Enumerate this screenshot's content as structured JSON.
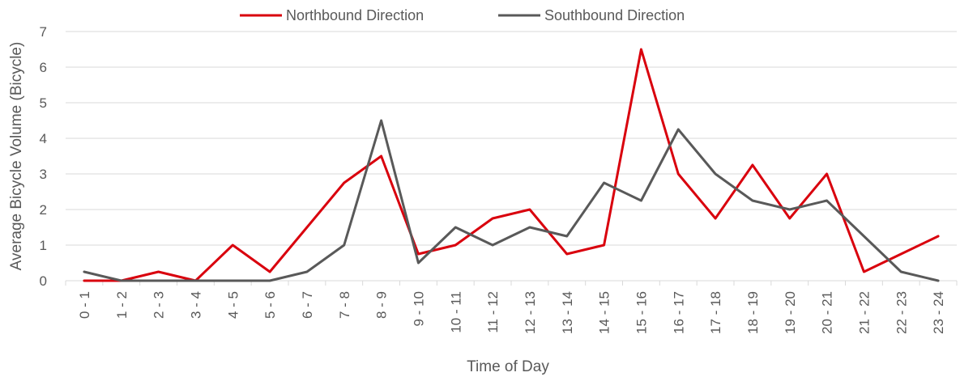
{
  "chart_data": {
    "type": "line",
    "title": "",
    "xlabel": "Time of Day",
    "ylabel": "Average Bicycle Volume (Bicycle)",
    "categories": [
      "0 - 1",
      "1 - 2",
      "2 - 3",
      "3 - 4",
      "4 - 5",
      "5 - 6",
      "6 - 7",
      "7 - 8",
      "8 - 9",
      "9 - 10",
      "10 - 11",
      "11 - 12",
      "12 - 13",
      "13 - 14",
      "14 - 15",
      "15 - 16",
      "16 - 17",
      "17 - 18",
      "18 - 19",
      "19 - 20",
      "20 - 21",
      "21 - 22",
      "22 - 23",
      "23 - 24"
    ],
    "ylim": [
      0,
      7
    ],
    "yticks": [
      0,
      1,
      2,
      3,
      4,
      5,
      6,
      7
    ],
    "grid": true,
    "legend_position": "top-center",
    "series": [
      {
        "name": "Northbound Direction",
        "color": "#d9000d",
        "values": [
          0,
          0,
          0.25,
          0,
          1,
          0.25,
          1.5,
          2.75,
          3.5,
          0.75,
          1,
          1.75,
          2,
          0.75,
          1,
          6.5,
          3,
          1.75,
          3.25,
          1.75,
          3,
          0.25,
          0.75,
          1.25
        ]
      },
      {
        "name": "Southbound Direction",
        "color": "#595959",
        "values": [
          0.25,
          0,
          0,
          0,
          0,
          0,
          0.25,
          1,
          4.5,
          0.5,
          1.5,
          1,
          1.5,
          1.25,
          2.75,
          2.25,
          4.25,
          3,
          2.25,
          2,
          2.25,
          1.25,
          0.25,
          0
        ]
      }
    ]
  }
}
